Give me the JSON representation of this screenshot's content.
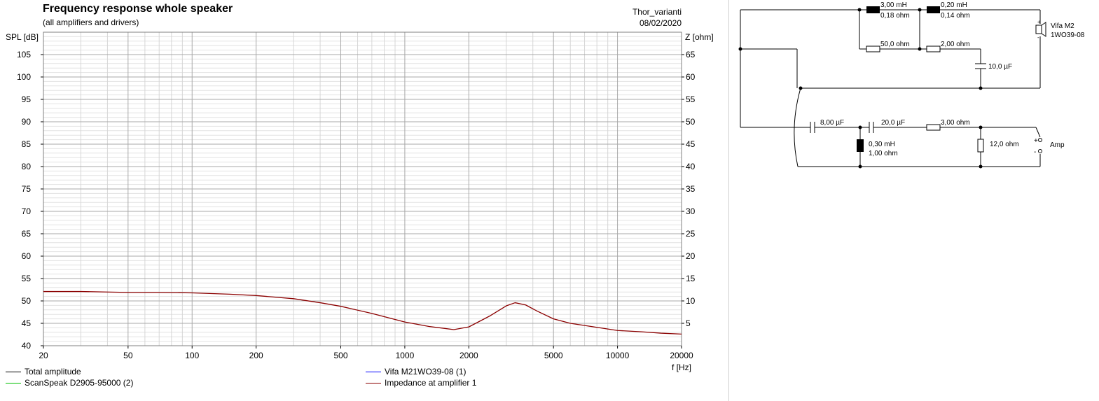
{
  "header": {
    "title": "Frequency response whole speaker",
    "subtitle": "(all amplifiers and drivers)",
    "project": "Thor_varianti",
    "date": "08/02/2020"
  },
  "chart_data": {
    "type": "line",
    "x_scale": "log",
    "xlabel": "f [Hz]",
    "ylabel_left": "SPL [dB]",
    "ylabel_right": "Z [ohm]",
    "xlim": [
      20,
      20000
    ],
    "ylim_left": [
      40,
      110
    ],
    "ylim_right": [
      0,
      70
    ],
    "grid": true,
    "x_tick_labels": [
      "20",
      "50",
      "100",
      "200",
      "500",
      "1000",
      "2000",
      "5000",
      "10000",
      "20000"
    ],
    "left_tick_labels": [
      "40",
      "45",
      "50",
      "55",
      "60",
      "65",
      "70",
      "75",
      "80",
      "85",
      "90",
      "95",
      "100",
      "105"
    ],
    "right_tick_labels": [
      "5",
      "10",
      "15",
      "20",
      "25",
      "30",
      "35",
      "40",
      "45",
      "50",
      "55",
      "60",
      "65"
    ],
    "series": [
      {
        "name": "Total amplitude",
        "color": "#000000",
        "axis": "left",
        "x": [],
        "y": []
      },
      {
        "name": "ScanSpeak D2905-95000 (2)",
        "color": "#00c000",
        "axis": "left",
        "x": [],
        "y": []
      },
      {
        "name": "Vifa M21WO39-08 (1)",
        "color": "#0000ff",
        "axis": "left",
        "x": [],
        "y": []
      },
      {
        "name": "Impedance at amplifier 1",
        "color": "#8b0000",
        "axis": "right",
        "x": [
          20,
          30,
          50,
          70,
          100,
          150,
          200,
          300,
          400,
          500,
          700,
          1000,
          1300,
          1700,
          2000,
          2500,
          3000,
          3300,
          3700,
          4200,
          5000,
          6000,
          8000,
          10000,
          13000,
          16000,
          20000
        ],
        "y": [
          12.1,
          12.1,
          11.9,
          11.9,
          11.8,
          11.5,
          11.2,
          10.5,
          9.6,
          8.8,
          7.2,
          5.3,
          4.3,
          3.6,
          4.2,
          6.6,
          8.9,
          9.6,
          9.1,
          7.7,
          6.0,
          5.0,
          4.1,
          3.4,
          3.1,
          2.8,
          2.6
        ]
      }
    ],
    "legend": [
      {
        "label": "Total amplitude",
        "color": "#000000"
      },
      {
        "label": "ScanSpeak D2905-95000 (2)",
        "color": "#00c000"
      },
      {
        "label": "Vifa M21WO39-08 (1)",
        "color": "#0000ff"
      },
      {
        "label": "Impedance at amplifier 1",
        "color": "#8b0000"
      }
    ]
  },
  "schematic": {
    "labels": {
      "l1": "3,00 mH",
      "r_l1": "0,18 ohm",
      "l2": "0,20 mH",
      "r_l2": "0,14 ohm",
      "r1": "50,0 ohm",
      "r2": "2,00 ohm",
      "c1": "10,0 µF",
      "driver_a": "Vifa M2",
      "driver_b": "1WO39-08",
      "c2": "8,00 µF",
      "c3": "20,0 µF",
      "r3": "3,00 ohm",
      "l3": "0,30 mH",
      "r_l3": "1,00 ohm",
      "r4": "12,0 ohm",
      "amp": "Amp",
      "plus": "+",
      "minus": "-"
    }
  }
}
